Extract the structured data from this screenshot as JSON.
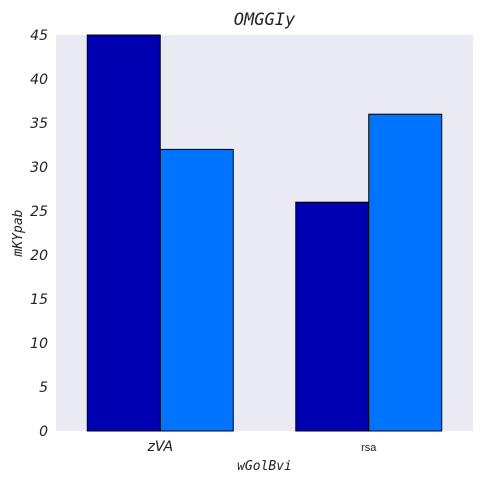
{
  "chart_data": {
    "type": "bar",
    "title": "OMGGIy",
    "xlabel": "wGolBvi",
    "ylabel": "mKYpab",
    "categories": [
      "zVA",
      "rsa"
    ],
    "series": [
      {
        "values": [
          45,
          26
        ],
        "color": "#0000b3"
      },
      {
        "values": [
          32,
          36
        ],
        "color": "#0073ff"
      }
    ],
    "ylim": [
      0,
      45
    ],
    "yticks": [
      "0",
      "5",
      "10",
      "15",
      "20",
      "25",
      "30",
      "35",
      "40",
      "45"
    ],
    "grid": false,
    "plot_background": "#eaeaf2",
    "bar_edge_color": "#000000"
  }
}
